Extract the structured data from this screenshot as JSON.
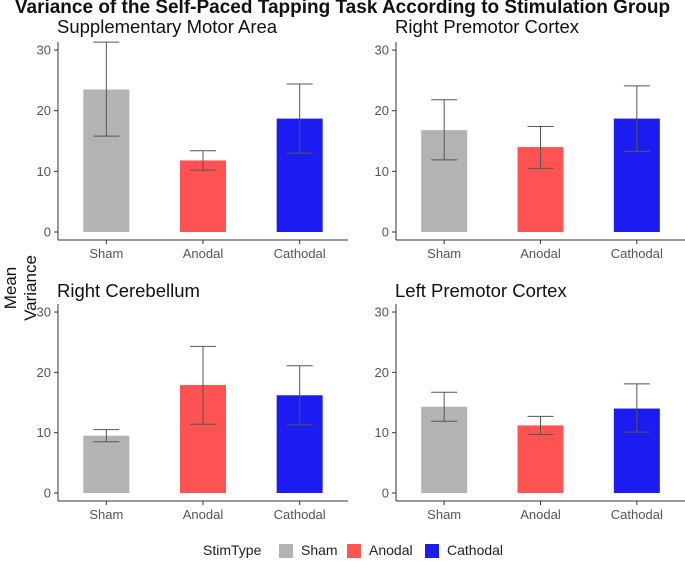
{
  "main_title": "Variance of the Self-Paced Tapping Task According to Stimulation Group",
  "y_axis_label": "Mean Variance",
  "colors": {
    "Sham": "#b3b3b3",
    "Anodal": "#ff5252",
    "Cathodal": "#1c1cf0",
    "error_bar": "#555555",
    "axis": "#333333"
  },
  "legend": {
    "title": "StimType",
    "items": [
      "Sham",
      "Anodal",
      "Cathodal"
    ]
  },
  "chart_data": [
    {
      "type": "bar",
      "title": "Supplementary Motor Area",
      "categories": [
        "Sham",
        "Anodal",
        "Cathodal"
      ],
      "values": [
        23.5,
        11.8,
        18.7
      ],
      "error_low": [
        15.8,
        10.2,
        13.0
      ],
      "error_high": [
        31.3,
        13.4,
        24.4
      ],
      "ylim": [
        0,
        31
      ],
      "yticks": [
        0,
        10,
        20,
        30
      ]
    },
    {
      "type": "bar",
      "title": "Right Premotor Cortex",
      "categories": [
        "Sham",
        "Anodal",
        "Cathodal"
      ],
      "values": [
        16.8,
        14.0,
        18.7
      ],
      "error_low": [
        11.9,
        10.5,
        13.3
      ],
      "error_high": [
        21.8,
        17.4,
        24.1
      ],
      "ylim": [
        0,
        31
      ],
      "yticks": [
        0,
        10,
        20,
        30
      ]
    },
    {
      "type": "bar",
      "title": "Right Cerebellum",
      "categories": [
        "Sham",
        "Anodal",
        "Cathodal"
      ],
      "values": [
        9.5,
        17.9,
        16.2
      ],
      "error_low": [
        8.5,
        11.4,
        11.3
      ],
      "error_high": [
        10.5,
        24.3,
        21.1
      ],
      "ylim": [
        0,
        31
      ],
      "yticks": [
        0,
        10,
        20,
        30
      ]
    },
    {
      "type": "bar",
      "title": "Left Premotor Cortex",
      "categories": [
        "Sham",
        "Anodal",
        "Cathodal"
      ],
      "values": [
        14.3,
        11.2,
        14.0
      ],
      "error_low": [
        11.9,
        9.7,
        10.1
      ],
      "error_high": [
        16.7,
        12.7,
        18.1
      ],
      "ylim": [
        0,
        31
      ],
      "yticks": [
        0,
        10,
        20,
        30
      ]
    }
  ]
}
